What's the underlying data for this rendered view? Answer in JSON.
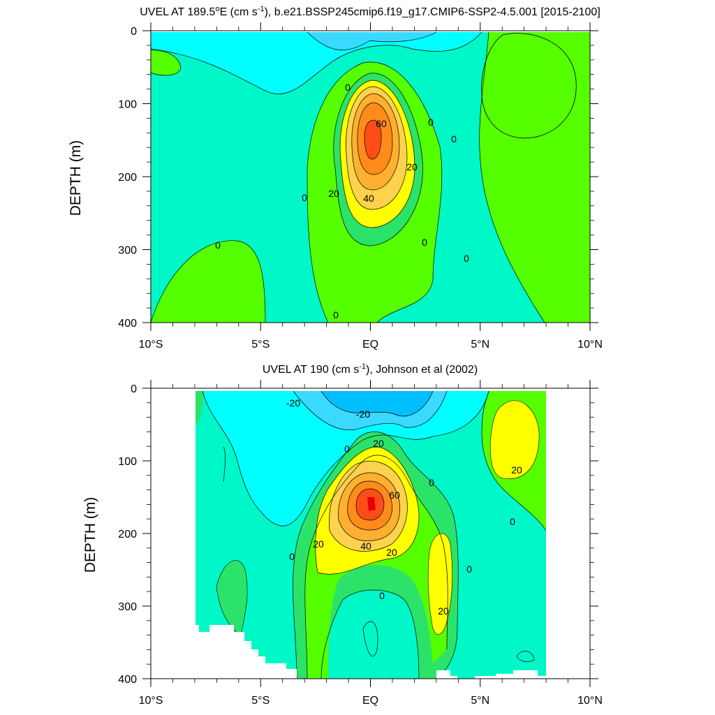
{
  "chart_data": [
    {
      "type": "contour",
      "title_main": "UVEL AT 189.5",
      "title_deg": "o",
      "title_mid": "E (cm s",
      "title_sup": "-1",
      "title_tail": "), b.e21.BSSP245cmip6.f19_g17.CMIP6-SSP2-4.5.001 [2015-2100]",
      "ylabel": "DEPTH (m)",
      "ylim": [
        400,
        0
      ],
      "xlim": [
        -10,
        10
      ],
      "yticks": [
        "0",
        "100",
        "200",
        "300",
        "400"
      ],
      "xticks": [
        "10°S",
        "5°S",
        "EQ",
        "5°N",
        "10°N"
      ],
      "contour_labels": [
        "0",
        "0",
        "0",
        "0",
        "0",
        "0",
        "0",
        "0",
        "20",
        "20",
        "40",
        "60"
      ],
      "levels": [
        -20,
        -10,
        0,
        10,
        20,
        30,
        40,
        50,
        60,
        70
      ],
      "core": {
        "lat": 0.0,
        "depth": 150,
        "max_speed": 70
      }
    },
    {
      "type": "contour",
      "title_main": "UVEL AT 190 (cm s",
      "title_sup": "-1",
      "title_tail": "), Johnson et al (2002)",
      "ylabel": "DEPTH (m)",
      "ylim": [
        400,
        0
      ],
      "xlim": [
        -10,
        10
      ],
      "yticks": [
        "0",
        "100",
        "200",
        "300",
        "400"
      ],
      "xticks": [
        "10°S",
        "5°S",
        "EQ",
        "5°N",
        "10°N"
      ],
      "contour_labels": [
        "-20",
        "-20",
        "20",
        "0",
        "0",
        "0",
        "0",
        "0",
        "20",
        "40",
        "60",
        "20",
        "20",
        "20",
        "0"
      ],
      "levels": [
        -30,
        -20,
        -10,
        0,
        10,
        20,
        30,
        40,
        50,
        60,
        70,
        80
      ],
      "core": {
        "lat": 0.0,
        "depth": 150,
        "max_speed": 80
      }
    }
  ],
  "colors": {
    "neg30": "#00bfff",
    "neg20": "#3ad9ff",
    "neg10": "#00ffff",
    "zero": "#00f7c8",
    "pos10": "#2ce36a",
    "pos20": "#55ff00",
    "pos30": "#ffff00",
    "pos40": "#ffd24d",
    "pos50": "#ffb030",
    "pos60": "#ff8c1a",
    "pos70": "#ff4d1a",
    "pos80": "#e60000"
  }
}
